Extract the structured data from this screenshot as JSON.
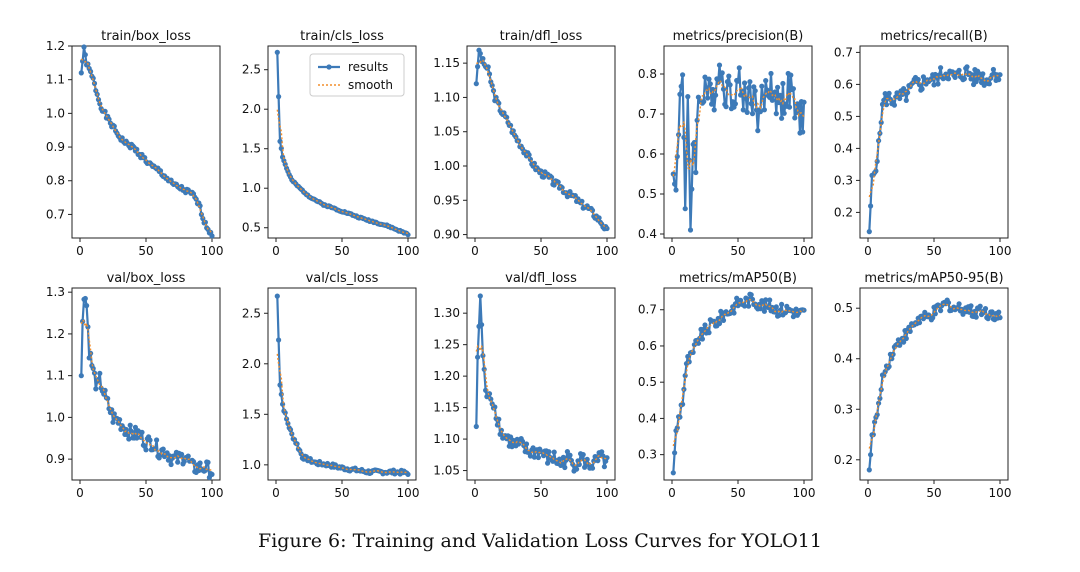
{
  "caption": "Figure 6: Training and Validation Loss Curves for YOLO11",
  "colors": {
    "results": "#3d7ab8",
    "smooth": "#f28e2b",
    "axis": "#222222"
  },
  "legend": {
    "results": "results",
    "smooth": "smooth"
  },
  "chart_data": [
    {
      "type": "line",
      "title": "train/box_loss",
      "xlim": [
        0,
        100
      ],
      "ylim": [
        0.63,
        1.2
      ],
      "xticks": [
        0,
        50,
        100
      ],
      "yticks": [
        0.7,
        0.8,
        0.9,
        1.0,
        1.1,
        1.2
      ],
      "anchors": [
        [
          1,
          1.12
        ],
        [
          3,
          1.19
        ],
        [
          5,
          1.15
        ],
        [
          10,
          1.1
        ],
        [
          15,
          1.03
        ],
        [
          20,
          0.99
        ],
        [
          25,
          0.96
        ],
        [
          30,
          0.93
        ],
        [
          35,
          0.91
        ],
        [
          40,
          0.9
        ],
        [
          45,
          0.88
        ],
        [
          50,
          0.86
        ],
        [
          55,
          0.84
        ],
        [
          60,
          0.83
        ],
        [
          65,
          0.81
        ],
        [
          70,
          0.79
        ],
        [
          75,
          0.78
        ],
        [
          80,
          0.77
        ],
        [
          85,
          0.76
        ],
        [
          90,
          0.73
        ],
        [
          95,
          0.67
        ],
        [
          100,
          0.64
        ]
      ],
      "noise": 0.008,
      "seed": 1
    },
    {
      "type": "line",
      "title": "train/cls_loss",
      "xlim": [
        0,
        100
      ],
      "ylim": [
        0.37,
        2.8
      ],
      "xticks": [
        0,
        50,
        100
      ],
      "yticks": [
        0.5,
        1.0,
        1.5,
        2.0,
        2.5
      ],
      "anchors": [
        [
          1,
          2.72
        ],
        [
          3,
          1.6
        ],
        [
          5,
          1.4
        ],
        [
          8,
          1.25
        ],
        [
          12,
          1.1
        ],
        [
          18,
          1.0
        ],
        [
          25,
          0.9
        ],
        [
          35,
          0.8
        ],
        [
          45,
          0.74
        ],
        [
          55,
          0.68
        ],
        [
          65,
          0.62
        ],
        [
          75,
          0.57
        ],
        [
          85,
          0.52
        ],
        [
          95,
          0.45
        ],
        [
          100,
          0.42
        ]
      ],
      "noise": 0.01,
      "seed": 2,
      "legend": true
    },
    {
      "type": "line",
      "title": "train/dfl_loss",
      "xlim": [
        0,
        100
      ],
      "ylim": [
        0.895,
        1.175
      ],
      "xticks": [
        0,
        50,
        100
      ],
      "yticks": [
        0.9,
        0.95,
        1.0,
        1.05,
        1.1,
        1.15
      ],
      "anchors": [
        [
          1,
          1.12
        ],
        [
          3,
          1.17
        ],
        [
          5,
          1.155
        ],
        [
          10,
          1.14
        ],
        [
          15,
          1.1
        ],
        [
          20,
          1.08
        ],
        [
          25,
          1.065
        ],
        [
          30,
          1.045
        ],
        [
          35,
          1.03
        ],
        [
          40,
          1.015
        ],
        [
          45,
          1.0
        ],
        [
          50,
          0.99
        ],
        [
          55,
          0.985
        ],
        [
          60,
          0.975
        ],
        [
          65,
          0.97
        ],
        [
          70,
          0.96
        ],
        [
          75,
          0.955
        ],
        [
          80,
          0.945
        ],
        [
          85,
          0.94
        ],
        [
          90,
          0.93
        ],
        [
          95,
          0.92
        ],
        [
          100,
          0.905
        ]
      ],
      "noise": 0.005,
      "seed": 3
    },
    {
      "type": "line",
      "title": "metrics/precision(B)",
      "xlim": [
        0,
        100
      ],
      "ylim": [
        0.39,
        0.87
      ],
      "xticks": [
        0,
        50,
        100
      ],
      "yticks": [
        0.4,
        0.5,
        0.6,
        0.7,
        0.8
      ],
      "anchors": [
        [
          1,
          0.55
        ],
        [
          3,
          0.5
        ],
        [
          6,
          0.75
        ],
        [
          8,
          0.83
        ],
        [
          10,
          0.46
        ],
        [
          12,
          0.7
        ],
        [
          14,
          0.42
        ],
        [
          16,
          0.64
        ],
        [
          18,
          0.6
        ],
        [
          20,
          0.72
        ],
        [
          25,
          0.78
        ],
        [
          30,
          0.72
        ],
        [
          35,
          0.82
        ],
        [
          40,
          0.77
        ],
        [
          45,
          0.75
        ],
        [
          50,
          0.78
        ],
        [
          55,
          0.74
        ],
        [
          60,
          0.76
        ],
        [
          65,
          0.7
        ],
        [
          70,
          0.74
        ],
        [
          75,
          0.78
        ],
        [
          80,
          0.73
        ],
        [
          85,
          0.74
        ],
        [
          90,
          0.76
        ],
        [
          95,
          0.68
        ],
        [
          100,
          0.71
        ]
      ],
      "noise": 0.05,
      "seed": 4
    },
    {
      "type": "line",
      "title": "metrics/recall(B)",
      "xlim": [
        0,
        100
      ],
      "ylim": [
        0.12,
        0.72
      ],
      "xticks": [
        0,
        50,
        100
      ],
      "yticks": [
        0.2,
        0.3,
        0.4,
        0.5,
        0.6,
        0.7
      ],
      "anchors": [
        [
          1,
          0.14
        ],
        [
          3,
          0.3
        ],
        [
          5,
          0.33
        ],
        [
          8,
          0.4
        ],
        [
          10,
          0.5
        ],
        [
          12,
          0.55
        ],
        [
          15,
          0.56
        ],
        [
          20,
          0.55
        ],
        [
          25,
          0.56
        ],
        [
          30,
          0.57
        ],
        [
          35,
          0.6
        ],
        [
          40,
          0.6
        ],
        [
          45,
          0.62
        ],
        [
          50,
          0.61
        ],
        [
          55,
          0.63
        ],
        [
          60,
          0.64
        ],
        [
          65,
          0.62
        ],
        [
          70,
          0.63
        ],
        [
          75,
          0.64
        ],
        [
          80,
          0.62
        ],
        [
          85,
          0.63
        ],
        [
          90,
          0.61
        ],
        [
          95,
          0.64
        ],
        [
          100,
          0.63
        ]
      ],
      "noise": 0.025,
      "seed": 5
    },
    {
      "type": "line",
      "title": "val/box_loss",
      "xlim": [
        0,
        100
      ],
      "ylim": [
        0.85,
        1.31
      ],
      "xticks": [
        0,
        50,
        100
      ],
      "yticks": [
        0.9,
        1.0,
        1.1,
        1.2,
        1.3
      ],
      "anchors": [
        [
          1,
          1.1
        ],
        [
          2,
          1.23
        ],
        [
          3,
          1.3
        ],
        [
          5,
          1.27
        ],
        [
          7,
          1.16
        ],
        [
          10,
          1.11
        ],
        [
          13,
          1.07
        ],
        [
          15,
          1.09
        ],
        [
          20,
          1.04
        ],
        [
          25,
          1.0
        ],
        [
          30,
          0.99
        ],
        [
          35,
          0.97
        ],
        [
          40,
          0.96
        ],
        [
          45,
          0.96
        ],
        [
          50,
          0.94
        ],
        [
          55,
          0.94
        ],
        [
          60,
          0.92
        ],
        [
          65,
          0.92
        ],
        [
          70,
          0.9
        ],
        [
          75,
          0.9
        ],
        [
          80,
          0.91
        ],
        [
          85,
          0.88
        ],
        [
          90,
          0.88
        ],
        [
          95,
          0.88
        ],
        [
          100,
          0.87
        ]
      ],
      "noise": 0.018,
      "seed": 6
    },
    {
      "type": "line",
      "title": "val/cls_loss",
      "xlim": [
        0,
        100
      ],
      "ylim": [
        0.85,
        2.75
      ],
      "xticks": [
        0,
        50,
        100
      ],
      "yticks": [
        1.0,
        1.5,
        2.0,
        2.5
      ],
      "anchors": [
        [
          1,
          2.67
        ],
        [
          3,
          1.8
        ],
        [
          5,
          1.6
        ],
        [
          8,
          1.45
        ],
        [
          12,
          1.3
        ],
        [
          16,
          1.2
        ],
        [
          20,
          1.08
        ],
        [
          25,
          1.05
        ],
        [
          30,
          1.02
        ],
        [
          40,
          1.0
        ],
        [
          50,
          0.97
        ],
        [
          60,
          0.95
        ],
        [
          70,
          0.93
        ],
        [
          80,
          0.93
        ],
        [
          90,
          0.93
        ],
        [
          100,
          0.92
        ]
      ],
      "noise": 0.02,
      "seed": 7
    },
    {
      "type": "line",
      "title": "val/dfl_loss",
      "xlim": [
        0,
        100
      ],
      "ylim": [
        1.035,
        1.34
      ],
      "xticks": [
        0,
        50,
        100
      ],
      "yticks": [
        1.05,
        1.1,
        1.15,
        1.2,
        1.25,
        1.3
      ],
      "anchors": [
        [
          1,
          1.12
        ],
        [
          2,
          1.23
        ],
        [
          4,
          1.33
        ],
        [
          6,
          1.23
        ],
        [
          8,
          1.18
        ],
        [
          10,
          1.16
        ],
        [
          12,
          1.17
        ],
        [
          15,
          1.15
        ],
        [
          20,
          1.11
        ],
        [
          25,
          1.1
        ],
        [
          30,
          1.09
        ],
        [
          35,
          1.09
        ],
        [
          40,
          1.08
        ],
        [
          45,
          1.08
        ],
        [
          50,
          1.08
        ],
        [
          55,
          1.07
        ],
        [
          60,
          1.07
        ],
        [
          65,
          1.06
        ],
        [
          70,
          1.07
        ],
        [
          75,
          1.06
        ],
        [
          80,
          1.07
        ],
        [
          85,
          1.06
        ],
        [
          90,
          1.06
        ],
        [
          95,
          1.07
        ],
        [
          100,
          1.06
        ]
      ],
      "noise": 0.012,
      "seed": 8
    },
    {
      "type": "line",
      "title": "metrics/mAP50(B)",
      "xlim": [
        0,
        100
      ],
      "ylim": [
        0.23,
        0.76
      ],
      "xticks": [
        0,
        50,
        100
      ],
      "yticks": [
        0.3,
        0.4,
        0.5,
        0.6,
        0.7
      ],
      "anchors": [
        [
          1,
          0.25
        ],
        [
          3,
          0.36
        ],
        [
          5,
          0.4
        ],
        [
          8,
          0.45
        ],
        [
          10,
          0.52
        ],
        [
          12,
          0.56
        ],
        [
          15,
          0.57
        ],
        [
          18,
          0.6
        ],
        [
          20,
          0.62
        ],
        [
          25,
          0.64
        ],
        [
          30,
          0.66
        ],
        [
          35,
          0.67
        ],
        [
          40,
          0.69
        ],
        [
          45,
          0.7
        ],
        [
          50,
          0.72
        ],
        [
          55,
          0.72
        ],
        [
          60,
          0.73
        ],
        [
          65,
          0.72
        ],
        [
          70,
          0.71
        ],
        [
          75,
          0.71
        ],
        [
          80,
          0.7
        ],
        [
          85,
          0.7
        ],
        [
          90,
          0.7
        ],
        [
          95,
          0.69
        ],
        [
          100,
          0.69
        ]
      ],
      "noise": 0.018,
      "seed": 9
    },
    {
      "type": "line",
      "title": "metrics/mAP50-95(B)",
      "xlim": [
        0,
        100
      ],
      "ylim": [
        0.16,
        0.54
      ],
      "xticks": [
        0,
        50,
        100
      ],
      "yticks": [
        0.2,
        0.3,
        0.4,
        0.5
      ],
      "anchors": [
        [
          1,
          0.18
        ],
        [
          3,
          0.24
        ],
        [
          5,
          0.27
        ],
        [
          8,
          0.3
        ],
        [
          10,
          0.35
        ],
        [
          12,
          0.37
        ],
        [
          15,
          0.39
        ],
        [
          18,
          0.41
        ],
        [
          20,
          0.42
        ],
        [
          25,
          0.44
        ],
        [
          30,
          0.45
        ],
        [
          35,
          0.47
        ],
        [
          40,
          0.48
        ],
        [
          45,
          0.48
        ],
        [
          50,
          0.49
        ],
        [
          55,
          0.5
        ],
        [
          60,
          0.51
        ],
        [
          65,
          0.5
        ],
        [
          70,
          0.5
        ],
        [
          75,
          0.5
        ],
        [
          80,
          0.49
        ],
        [
          85,
          0.5
        ],
        [
          90,
          0.49
        ],
        [
          95,
          0.49
        ],
        [
          100,
          0.48
        ]
      ],
      "noise": 0.012,
      "seed": 10
    }
  ]
}
